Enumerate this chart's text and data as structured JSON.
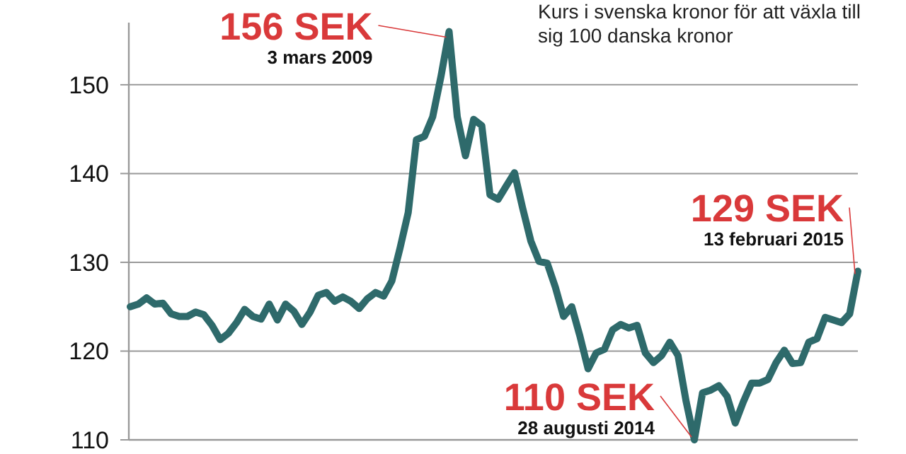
{
  "chart_data": {
    "type": "line",
    "categories": [
      null,
      null,
      null,
      null,
      null,
      null,
      null,
      null,
      null,
      null,
      null,
      null,
      null,
      null,
      null,
      null,
      null,
      null,
      null,
      null,
      null,
      null,
      null,
      null,
      null,
      null,
      null,
      null,
      null,
      null,
      null,
      null,
      null,
      null,
      null,
      null,
      null,
      null,
      null,
      null,
      null,
      null,
      null,
      null,
      null,
      null,
      null,
      null,
      null,
      null,
      null,
      null,
      null,
      null,
      null,
      null,
      null,
      null,
      null,
      null,
      null,
      null,
      null,
      null,
      null,
      null,
      null,
      null,
      null,
      null,
      null,
      null,
      null,
      null,
      null,
      null,
      null,
      null,
      null,
      null,
      null,
      null,
      null,
      null,
      null,
      null,
      null,
      null,
      null,
      null
    ],
    "series": [
      {
        "color": "#2e6a6b",
        "values": [
          125.0,
          125.3,
          126.0,
          125.3,
          125.4,
          124.2,
          123.9,
          123.9,
          124.4,
          124.1,
          122.9,
          121.3,
          122.0,
          123.2,
          124.7,
          123.9,
          123.6,
          125.3,
          123.5,
          125.3,
          124.5,
          123.0,
          124.4,
          126.3,
          126.6,
          125.6,
          126.1,
          125.6,
          124.8,
          125.9,
          126.6,
          126.2,
          127.9,
          131.6,
          135.6,
          143.8,
          144.2,
          146.4,
          150.9,
          156,
          146.4,
          142.0,
          146.1,
          145.4,
          137.6,
          137.1,
          138.6,
          140.1,
          136.1,
          132.4,
          130.1,
          129.9,
          127.2,
          123.9,
          125.0,
          121.7,
          118.0,
          119.8,
          120.2,
          122.4,
          123.0,
          122.6,
          122.9,
          119.8,
          118.7,
          119.5,
          121.0,
          119.5,
          114.3,
          110,
          115.3,
          115.6,
          116.1,
          114.9,
          111.9,
          114.3,
          116.4,
          116.4,
          116.8,
          118.7,
          120.1,
          118.6,
          118.7,
          121.0,
          121.4,
          123.8,
          123.5,
          123.2,
          124.2,
          129
        ]
      }
    ],
    "ylim": [
      110,
      157
    ],
    "yticks": [
      110,
      120,
      130,
      140,
      150
    ],
    "grid": "y",
    "marker": "none",
    "line_style": "solid",
    "annotations": [
      "Kurs i svenska kronor för att växla till sig 100 danska kronor",
      "156 SEK",
      "3 mars 2009",
      "110 SEK",
      "28 augusti 2014",
      "129 SEK",
      "13 februari 2015"
    ]
  }
}
